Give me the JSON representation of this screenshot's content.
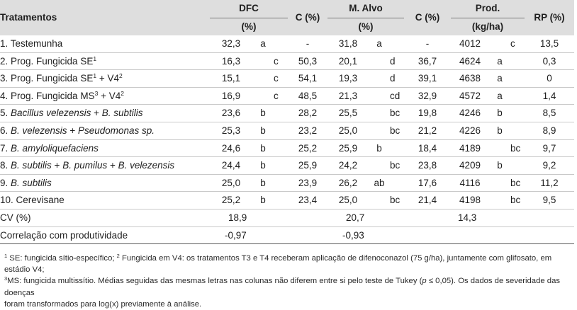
{
  "headers": {
    "tratamentos": "Tratamentos",
    "dfc": "DFC",
    "dfc_unit": "(%)",
    "c1": "C (%)",
    "malvo": "M. Alvo",
    "malvo_unit": "(%)",
    "c2": "C (%)",
    "prod": "Prod.",
    "prod_unit": "(kg/ha)",
    "rp": "RP (%)"
  },
  "rows": [
    {
      "name": "1. Testemunha",
      "dfc": "32,3",
      "dfc_l1": "a",
      "dfc_l2": "",
      "c1": "-",
      "malvo": "31,8",
      "malvo_l1": "a",
      "malvo_l2": "",
      "c2": "-",
      "prod": "4012",
      "prod_l1": "",
      "prod_l2": "c",
      "rp": "13,5"
    },
    {
      "name": "2. Prog. Fungicida SE",
      "name_sup": "1",
      "name_tail": "",
      "dfc": "16,3",
      "dfc_l1": "",
      "dfc_l2": "c",
      "c1": "50,3",
      "malvo": "20,1",
      "malvo_l1": "",
      "malvo_l2": "d",
      "c2": "36,7",
      "prod": "4624",
      "prod_l1": "a",
      "prod_l2": "",
      "rp": "0,3"
    },
    {
      "name": "3. Prog. Fungicida SE",
      "name_sup": "1",
      "name_tail": " + V4",
      "name_sup2": "2",
      "dfc": "15,1",
      "dfc_l1": "",
      "dfc_l2": "c",
      "c1": "54,1",
      "malvo": "19,3",
      "malvo_l1": "",
      "malvo_l2": "d",
      "c2": "39,1",
      "prod": "4638",
      "prod_l1": "a",
      "prod_l2": "",
      "rp": "0"
    },
    {
      "name": "4. Prog. Fungicida MS",
      "name_sup": "3",
      "name_tail": " + V4",
      "name_sup2": "2",
      "dfc": "16,9",
      "dfc_l1": "",
      "dfc_l2": "c",
      "c1": "48,5",
      "malvo": "21,3",
      "malvo_l1": "",
      "malvo_l2": "cd",
      "c2": "32,9",
      "prod": "4572",
      "prod_l1": "a",
      "prod_l2": "",
      "rp": "1,4"
    },
    {
      "prefix": "5. ",
      "italic": "Bacillus velezensis",
      "mid": " + ",
      "italic2": "B. subtilis",
      "dfc": "23,6",
      "dfc_l1": "b",
      "dfc_l2": "",
      "c1": "28,2",
      "malvo": "25,5",
      "malvo_l1": "",
      "malvo_l2": "bc",
      "c2": "19,8",
      "prod": "4246",
      "prod_l1": "b",
      "prod_l2": "",
      "rp": "8,5"
    },
    {
      "prefix": "6. ",
      "italic": "B. velezensis",
      "mid": " + ",
      "italic2": "Pseudomonas sp.",
      "dfc": "25,3",
      "dfc_l1": "b",
      "dfc_l2": "",
      "c1": "23,2",
      "malvo": "25,0",
      "malvo_l1": "",
      "malvo_l2": "bc",
      "c2": "21,2",
      "prod": "4226",
      "prod_l1": "b",
      "prod_l2": "",
      "rp": "8,9"
    },
    {
      "prefix": "7. ",
      "italic": "B. amyloliquefaciens",
      "dfc": "24,6",
      "dfc_l1": "b",
      "dfc_l2": "",
      "c1": "25,2",
      "malvo": "25,9",
      "malvo_l1": "b",
      "malvo_l2": "",
      "c2": "18,4",
      "prod": "4189",
      "prod_l1": "",
      "prod_l2": "bc",
      "rp": "9,7"
    },
    {
      "prefix": "8. ",
      "italic": "B. subtilis",
      "mid": " + ",
      "italic2": "B. pumilus",
      "mid2": " + ",
      "italic3": "B. velezensis",
      "dfc": "24,4",
      "dfc_l1": "b",
      "dfc_l2": "",
      "c1": "25,9",
      "malvo": "24,2",
      "malvo_l1": "",
      "malvo_l2": "bc",
      "c2": "23,8",
      "prod": "4209",
      "prod_l1": "b",
      "prod_l2": "",
      "rp": "9,2"
    },
    {
      "prefix": "9. ",
      "italic": "B. subtilis",
      "dfc": "25,0",
      "dfc_l1": "b",
      "dfc_l2": "",
      "c1": "23,9",
      "malvo": "26,2",
      "malvo_l1": "ab",
      "malvo_l2": "",
      "c2": "17,6",
      "prod": "4116",
      "prod_l1": "",
      "prod_l2": "bc",
      "rp": "11,2"
    },
    {
      "name": "10. Cerevisane",
      "dfc": "25,2",
      "dfc_l1": "b",
      "dfc_l2": "",
      "c1": "23,4",
      "malvo": "25,0",
      "malvo_l1": "",
      "malvo_l2": "bc",
      "c2": "21,4",
      "prod": "4198",
      "prod_l1": "",
      "prod_l2": "bc",
      "rp": "9,5"
    }
  ],
  "cv": {
    "label": "CV (%)",
    "dfc": "18,9",
    "malvo": "20,7",
    "prod": "14,3"
  },
  "corr": {
    "label": "Correlação com produtividade",
    "dfc": "-0,97",
    "malvo": "-0,93"
  },
  "notes": {
    "n1_sup": "1",
    "n1": " SE: fungicida sítio-específico; ",
    "n2_sup": "2",
    "n2": " Fungicida em V4: os tratamentos T3 e T4 receberam aplicação de difenoconazol (75 g/ha), juntamente com glifosato, em estádio V4;",
    "n3_sup": "3",
    "n3a": "MS: fungicida multissítio. Médias seguidas das mesmas letras nas colunas não diferem entre si pelo teste de Tukey (",
    "n3_p": "p",
    "n3b": " ≤ 0,05). Os dados de severidade das doenças",
    "n4": "foram transformados para log(x) previamente à análise."
  }
}
